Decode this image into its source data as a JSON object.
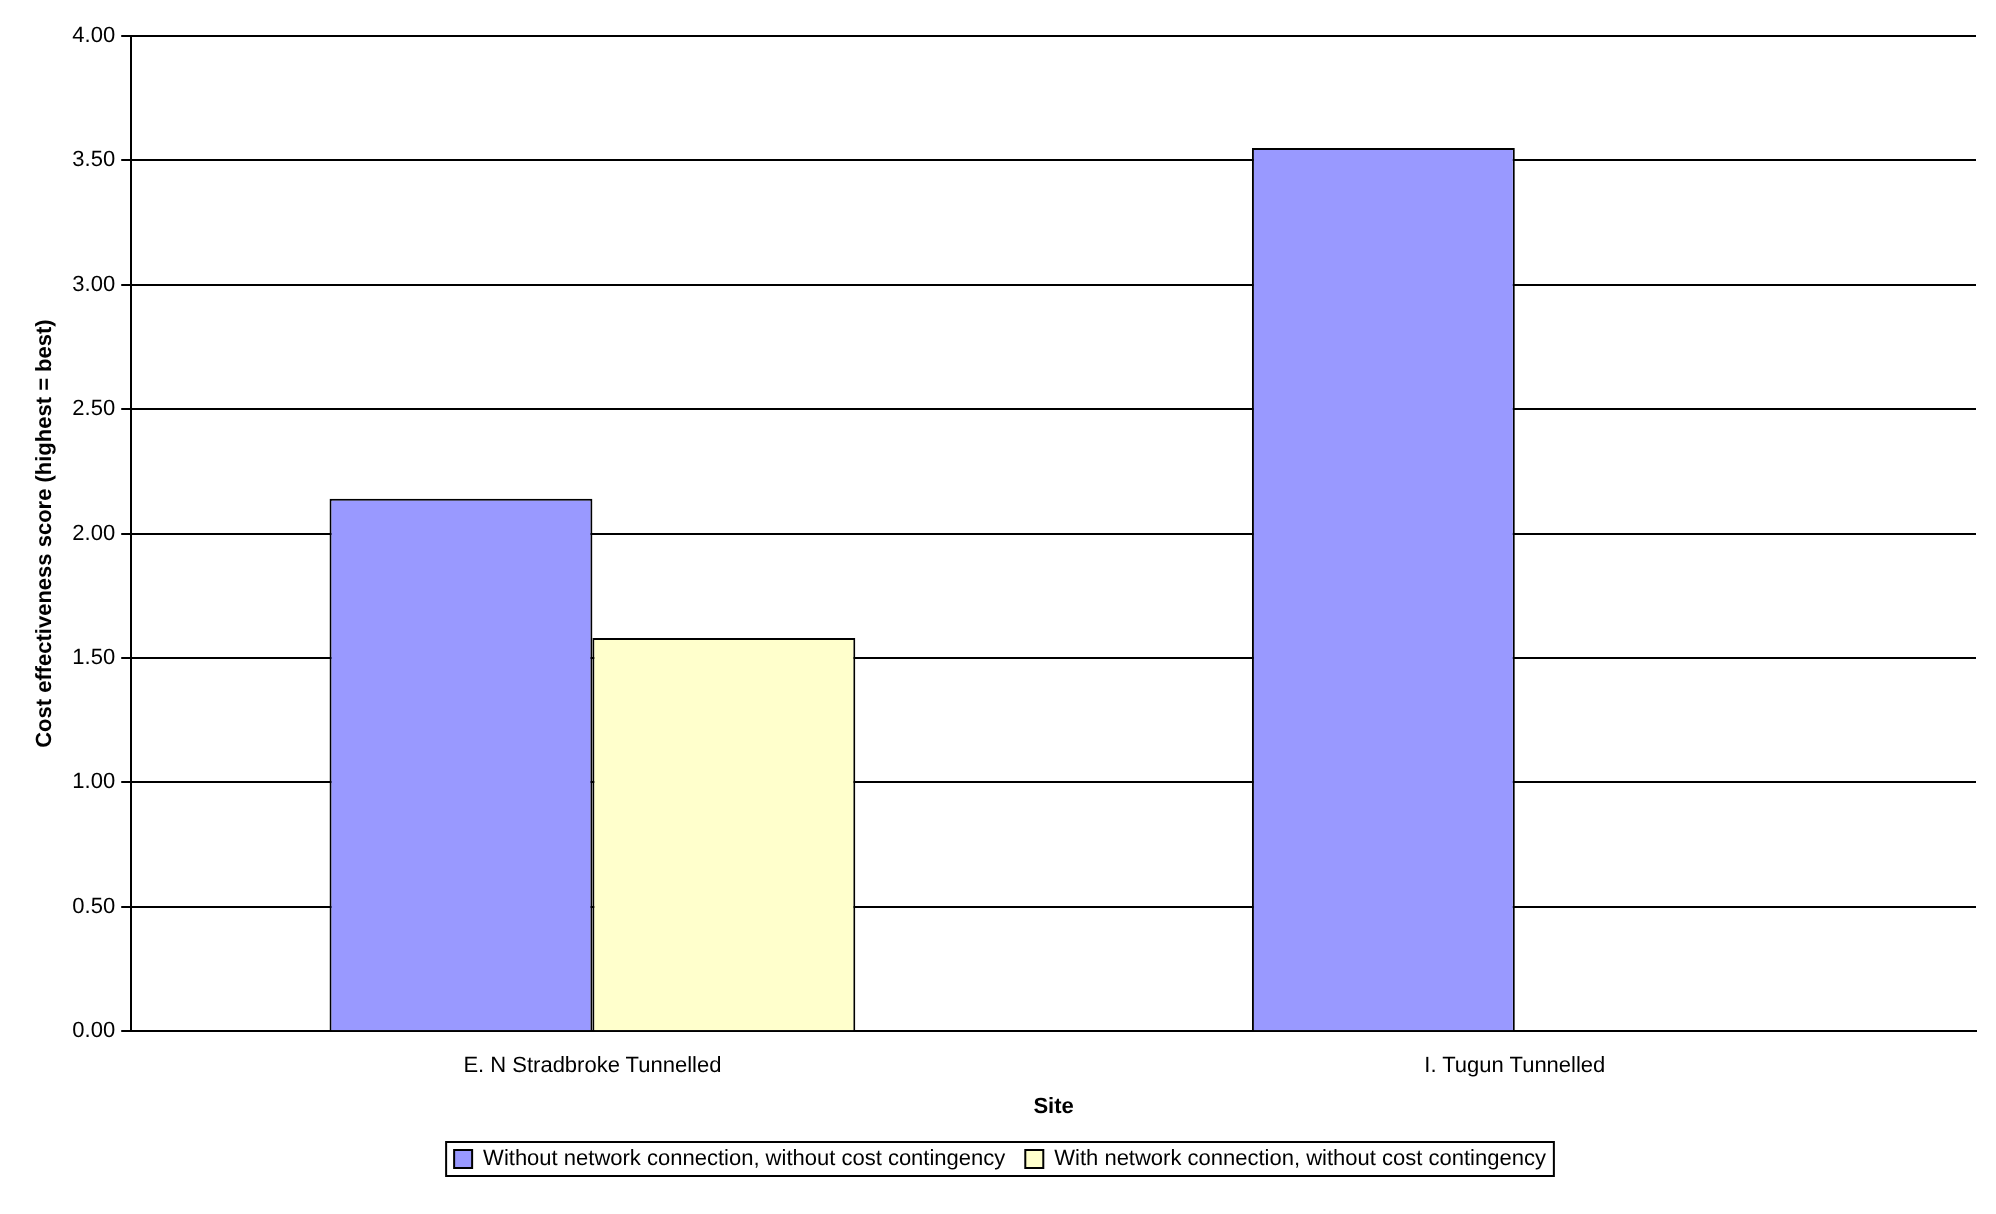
{
  "chart_data": {
    "type": "bar",
    "xlabel": "Site",
    "ylabel": "Cost effectiveness score (highest = best)",
    "categories": [
      "E. N Stradbroke Tunnelled",
      "I. Tugun Tunnelled"
    ],
    "series": [
      {
        "name": "Without network connection, without cost contingency",
        "color": "#9999ff",
        "values": [
          2.14,
          3.55
        ]
      },
      {
        "name": "With network connection, without cost contingency",
        "color": "#ffffcc",
        "values": [
          1.58,
          null
        ]
      }
    ],
    "ylim": [
      0,
      4
    ],
    "yticks": [
      {
        "value": 0,
        "label": "0.00"
      },
      {
        "value": 0.5,
        "label": "0.50"
      },
      {
        "value": 1,
        "label": "1.00"
      },
      {
        "value": 1.5,
        "label": "1.50"
      },
      {
        "value": 2,
        "label": "2.00"
      },
      {
        "value": 2.5,
        "label": "2.50"
      },
      {
        "value": 3,
        "label": "3.00"
      },
      {
        "value": 3.5,
        "label": "3.50"
      },
      {
        "value": 4,
        "label": "4.00"
      }
    ],
    "grid": "y",
    "legend": "bottom"
  }
}
